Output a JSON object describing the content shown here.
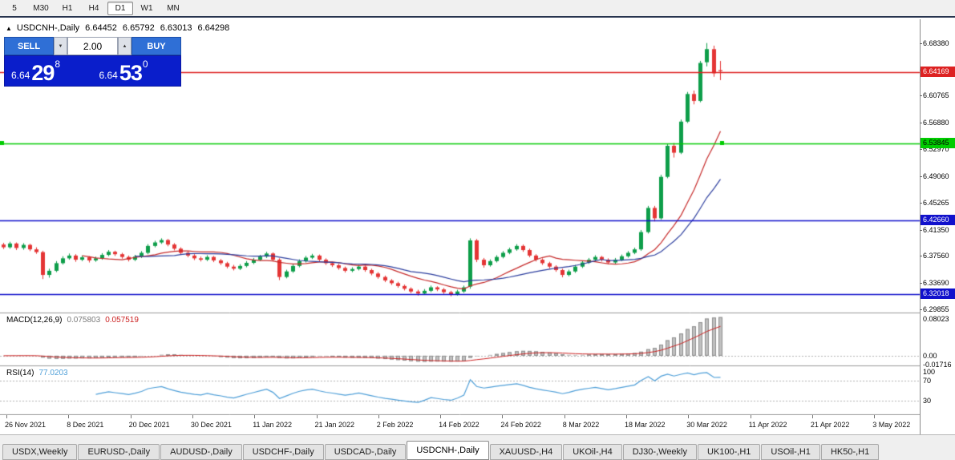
{
  "toolbar": {
    "timeframes": [
      {
        "label": "5",
        "active": false
      },
      {
        "label": "M30",
        "active": false
      },
      {
        "label": "H1",
        "active": false
      },
      {
        "label": "H4",
        "active": false
      },
      {
        "label": "D1",
        "active": true
      },
      {
        "label": "W1",
        "active": false
      },
      {
        "label": "MN",
        "active": false
      }
    ]
  },
  "chart_header": {
    "toggle_icon": "▲",
    "title": "USDCNH-,Daily",
    "open": "6.64452",
    "high": "6.65792",
    "low": "6.63013",
    "close": "6.64298"
  },
  "trade_panel": {
    "sell_label": "SELL",
    "buy_label": "BUY",
    "volume": "2.00",
    "spinner_up_icon": "▲",
    "spinner_down_icon": "▼",
    "sell_price": {
      "prefix": "6.64",
      "big": "29",
      "sup": "8"
    },
    "buy_price": {
      "prefix": "6.64",
      "big": "53",
      "sup": "0"
    }
  },
  "colors": {
    "up_candle": "#0e9e4a",
    "down_candle": "#e43535",
    "ma_fast": "#c62a2a",
    "ma_slow": "#2c3e9e",
    "macd_hist_fill": "#c0c0c0",
    "macd_hist_stroke": "#8f8f8f",
    "macd_signal": "#cc2222",
    "rsi_line": "#4f9fd8",
    "separator": "#9a9a9a",
    "dotted_level": "#b0b0b0"
  },
  "y_axis": {
    "ticks": [
      "6.68380",
      "6.64575",
      "6.60765",
      "6.56880",
      "6.52970",
      "6.49060",
      "6.45265",
      "6.41350",
      "6.37560",
      "6.33690",
      "6.29855"
    ],
    "range": {
      "max": 6.7183,
      "min": 6.2935
    }
  },
  "hlines": [
    {
      "price": 6.64169,
      "label": "6.64169",
      "color": "#dd2222",
      "text_color": "#ffffff",
      "markers": false
    },
    {
      "price": 6.53845,
      "label": "6.53845",
      "color": "#00cc00",
      "text_color": "#000000",
      "markers": true
    },
    {
      "price": 6.4266,
      "label": "6.42660",
      "color": "#1111cc",
      "text_color": "#ffffff",
      "markers": false
    },
    {
      "price": 6.32018,
      "label": "6.32018",
      "color": "#1111cc",
      "text_color": "#ffffff",
      "markers": false
    }
  ],
  "macd": {
    "name": "MACD(12,26,9)",
    "main_value": "0.075803",
    "signal_value": "0.057519",
    "axis_labels": {
      "top": "0.08023",
      "zero": "0.00",
      "bottom": "-0.01716"
    },
    "range": {
      "max": 0.08023,
      "min": -0.01716
    },
    "params": {
      "fast": 12,
      "slow": 26,
      "signal": 9
    }
  },
  "rsi": {
    "name": "RSI(14)",
    "value": "77.0203",
    "axis_labels": [
      "100",
      "70",
      "30"
    ],
    "levels": [
      70,
      30
    ],
    "period": 14,
    "range": [
      0,
      100
    ]
  },
  "x_axis": {
    "dates": [
      "26 Nov 2021",
      "8 Dec 2021",
      "20 Dec 2021",
      "30 Dec 2021",
      "11 Jan 2022",
      "21 Jan 2022",
      "2 Feb 2022",
      "14 Feb 2022",
      "24 Feb 2022",
      "8 Mar 2022",
      "18 Mar 2022",
      "30 Mar 2022",
      "11 Apr 2022",
      "21 Apr 2022",
      "3 May 2022"
    ]
  },
  "tabs": [
    {
      "label": "USDX,Weekly",
      "active": false
    },
    {
      "label": "EURUSD-,Daily",
      "active": false
    },
    {
      "label": "AUDUSD-,Daily",
      "active": false
    },
    {
      "label": "USDCHF-,Daily",
      "active": false
    },
    {
      "label": "USDCAD-,Daily",
      "active": false
    },
    {
      "label": "USDCNH-,Daily",
      "active": true
    },
    {
      "label": "XAUUSD-,H4",
      "active": false
    },
    {
      "label": "UKOil-,H4",
      "active": false
    },
    {
      "label": "DJ30-,Weekly",
      "active": false
    },
    {
      "label": "UK100-,H1",
      "active": false
    },
    {
      "label": "USOil-,H1",
      "active": false
    },
    {
      "label": "HK50-,H1",
      "active": false
    }
  ],
  "chart_data": {
    "type": "candlestick",
    "symbol": "USDCNH-",
    "timeframe": "Daily",
    "y_range": {
      "max": 6.7183,
      "min": 6.2935
    },
    "overlays": [
      {
        "type": "sma",
        "period": 13,
        "color_key": "ma_fast"
      },
      {
        "type": "sma",
        "period": 21,
        "color_key": "ma_slow"
      }
    ],
    "candles": [
      [
        6.392,
        6.3945,
        6.3855,
        6.388
      ],
      [
        6.388,
        6.396,
        6.386,
        6.3935
      ],
      [
        6.3935,
        6.395,
        6.384,
        6.387
      ],
      [
        6.387,
        6.394,
        6.3845,
        6.3915
      ],
      [
        6.3915,
        6.393,
        6.3825,
        6.385
      ],
      [
        6.385,
        6.388,
        6.3785,
        6.381
      ],
      [
        6.381,
        6.383,
        6.342,
        6.348
      ],
      [
        6.348,
        6.357,
        6.344,
        6.354
      ],
      [
        6.354,
        6.368,
        6.352,
        6.365
      ],
      [
        6.365,
        6.375,
        6.363,
        6.372
      ],
      [
        6.372,
        6.379,
        6.37,
        6.376
      ],
      [
        6.376,
        6.378,
        6.367,
        6.37
      ],
      [
        6.37,
        6.376,
        6.368,
        6.3735
      ],
      [
        6.3735,
        6.375,
        6.366,
        6.369
      ],
      [
        6.369,
        6.3745,
        6.367,
        6.372
      ],
      [
        6.372,
        6.3795,
        6.37,
        6.377
      ],
      [
        6.377,
        6.384,
        6.375,
        6.3815
      ],
      [
        6.3815,
        6.383,
        6.3755,
        6.378
      ],
      [
        6.378,
        6.38,
        6.3715,
        6.374
      ],
      [
        6.374,
        6.376,
        6.3675,
        6.37
      ],
      [
        6.37,
        6.377,
        6.368,
        6.3745
      ],
      [
        6.3745,
        6.3825,
        6.3725,
        6.38
      ],
      [
        6.38,
        6.3925,
        6.378,
        6.39
      ],
      [
        6.39,
        6.3975,
        6.388,
        6.395
      ],
      [
        6.395,
        6.401,
        6.393,
        6.3985
      ],
      [
        6.3985,
        6.4,
        6.3895,
        6.392
      ],
      [
        6.392,
        6.394,
        6.3835,
        6.386
      ],
      [
        6.386,
        6.388,
        6.3775,
        6.38
      ],
      [
        6.38,
        6.3825,
        6.3735,
        6.376
      ],
      [
        6.376,
        6.378,
        6.3695,
        6.372
      ],
      [
        6.372,
        6.3745,
        6.3675,
        6.37
      ],
      [
        6.37,
        6.3765,
        6.368,
        6.374
      ],
      [
        6.374,
        6.3755,
        6.3665,
        6.369
      ],
      [
        6.369,
        6.371,
        6.3625,
        6.365
      ],
      [
        6.365,
        6.367,
        6.3575,
        6.36
      ],
      [
        6.36,
        6.3625,
        6.3545,
        6.357
      ],
      [
        6.357,
        6.3635,
        6.355,
        6.361
      ],
      [
        6.361,
        6.368,
        6.359,
        6.3655
      ],
      [
        6.3655,
        6.3725,
        6.3635,
        6.37
      ],
      [
        6.37,
        6.377,
        6.368,
        6.3745
      ],
      [
        6.3745,
        6.3815,
        6.3725,
        6.379
      ],
      [
        6.379,
        6.3805,
        6.3675,
        6.37
      ],
      [
        6.37,
        6.372,
        6.3405,
        6.345
      ],
      [
        6.345,
        6.3555,
        6.343,
        6.353
      ],
      [
        6.353,
        6.3635,
        6.351,
        6.361
      ],
      [
        6.361,
        6.3705,
        6.359,
        6.368
      ],
      [
        6.368,
        6.3755,
        6.366,
        6.373
      ],
      [
        6.373,
        6.3785,
        6.371,
        6.376
      ],
      [
        6.376,
        6.3775,
        6.3675,
        6.37
      ],
      [
        6.37,
        6.372,
        6.3625,
        6.365
      ],
      [
        6.365,
        6.367,
        6.3595,
        6.362
      ],
      [
        6.362,
        6.364,
        6.3555,
        6.358
      ],
      [
        6.358,
        6.36,
        6.3515,
        6.354
      ],
      [
        6.354,
        6.359,
        6.352,
        6.3565
      ],
      [
        6.3565,
        6.3625,
        6.3545,
        6.36
      ],
      [
        6.36,
        6.3615,
        6.3525,
        6.355
      ],
      [
        6.355,
        6.357,
        6.3475,
        6.35
      ],
      [
        6.35,
        6.352,
        6.3425,
        6.345
      ],
      [
        6.345,
        6.347,
        6.3375,
        6.34
      ],
      [
        6.34,
        6.342,
        6.3335,
        6.336
      ],
      [
        6.336,
        6.338,
        6.3295,
        6.332
      ],
      [
        6.332,
        6.334,
        6.3255,
        6.328
      ],
      [
        6.328,
        6.33,
        6.3215,
        6.324
      ],
      [
        6.324,
        6.3265,
        6.318,
        6.321
      ],
      [
        6.321,
        6.3275,
        6.319,
        6.325
      ],
      [
        6.325,
        6.3325,
        6.323,
        6.33
      ],
      [
        6.33,
        6.3315,
        6.3245,
        6.327
      ],
      [
        6.327,
        6.329,
        6.3205,
        6.323
      ],
      [
        6.323,
        6.325,
        6.317,
        6.32
      ],
      [
        6.32,
        6.3265,
        6.318,
        6.324
      ],
      [
        6.324,
        6.3325,
        6.322,
        6.33
      ],
      [
        6.331,
        6.401,
        6.328,
        6.398
      ],
      [
        6.398,
        6.4,
        6.3665,
        6.37
      ],
      [
        6.37,
        6.3725,
        6.3585,
        6.362
      ],
      [
        6.362,
        6.3705,
        6.36,
        6.368
      ],
      [
        6.368,
        6.3765,
        6.366,
        6.374
      ],
      [
        6.374,
        6.3825,
        6.372,
        6.38
      ],
      [
        6.38,
        6.3875,
        6.378,
        6.385
      ],
      [
        6.385,
        6.3925,
        6.383,
        6.39
      ],
      [
        6.39,
        6.392,
        6.3815,
        6.384
      ],
      [
        6.384,
        6.386,
        6.3735,
        6.376
      ],
      [
        6.376,
        6.378,
        6.3675,
        6.37
      ],
      [
        6.37,
        6.372,
        6.3625,
        6.365
      ],
      [
        6.365,
        6.367,
        6.3575,
        6.36
      ],
      [
        6.36,
        6.362,
        6.3525,
        6.355
      ],
      [
        6.355,
        6.357,
        6.3445,
        6.348
      ],
      [
        6.348,
        6.3555,
        6.346,
        6.353
      ],
      [
        6.353,
        6.3625,
        6.351,
        6.36
      ],
      [
        6.36,
        6.3685,
        6.358,
        6.366
      ],
      [
        6.366,
        6.3725,
        6.364,
        6.37
      ],
      [
        6.37,
        6.3765,
        6.368,
        6.374
      ],
      [
        6.374,
        6.3755,
        6.3675,
        6.37
      ],
      [
        6.37,
        6.372,
        6.3635,
        6.366
      ],
      [
        6.366,
        6.3725,
        6.364,
        6.37
      ],
      [
        6.37,
        6.3775,
        6.368,
        6.375
      ],
      [
        6.375,
        6.3825,
        6.373,
        6.38
      ],
      [
        6.38,
        6.3875,
        6.378,
        6.385
      ],
      [
        6.385,
        6.413,
        6.383,
        6.41
      ],
      [
        6.41,
        6.448,
        6.408,
        6.445
      ],
      [
        6.445,
        6.448,
        6.4255,
        6.43
      ],
      [
        6.43,
        6.493,
        6.428,
        6.49
      ],
      [
        6.49,
        6.538,
        6.488,
        6.535
      ],
      [
        6.535,
        6.539,
        6.518,
        6.525
      ],
      [
        6.525,
        6.573,
        6.523,
        6.57
      ],
      [
        6.57,
        6.613,
        6.568,
        6.61
      ],
      [
        6.61,
        6.615,
        6.595,
        6.6
      ],
      [
        6.6,
        6.658,
        6.598,
        6.655
      ],
      [
        6.656,
        6.6838,
        6.65,
        6.675
      ],
      [
        6.675,
        6.68,
        6.635,
        6.64
      ],
      [
        6.6445,
        6.6579,
        6.6301,
        6.643
      ]
    ]
  }
}
